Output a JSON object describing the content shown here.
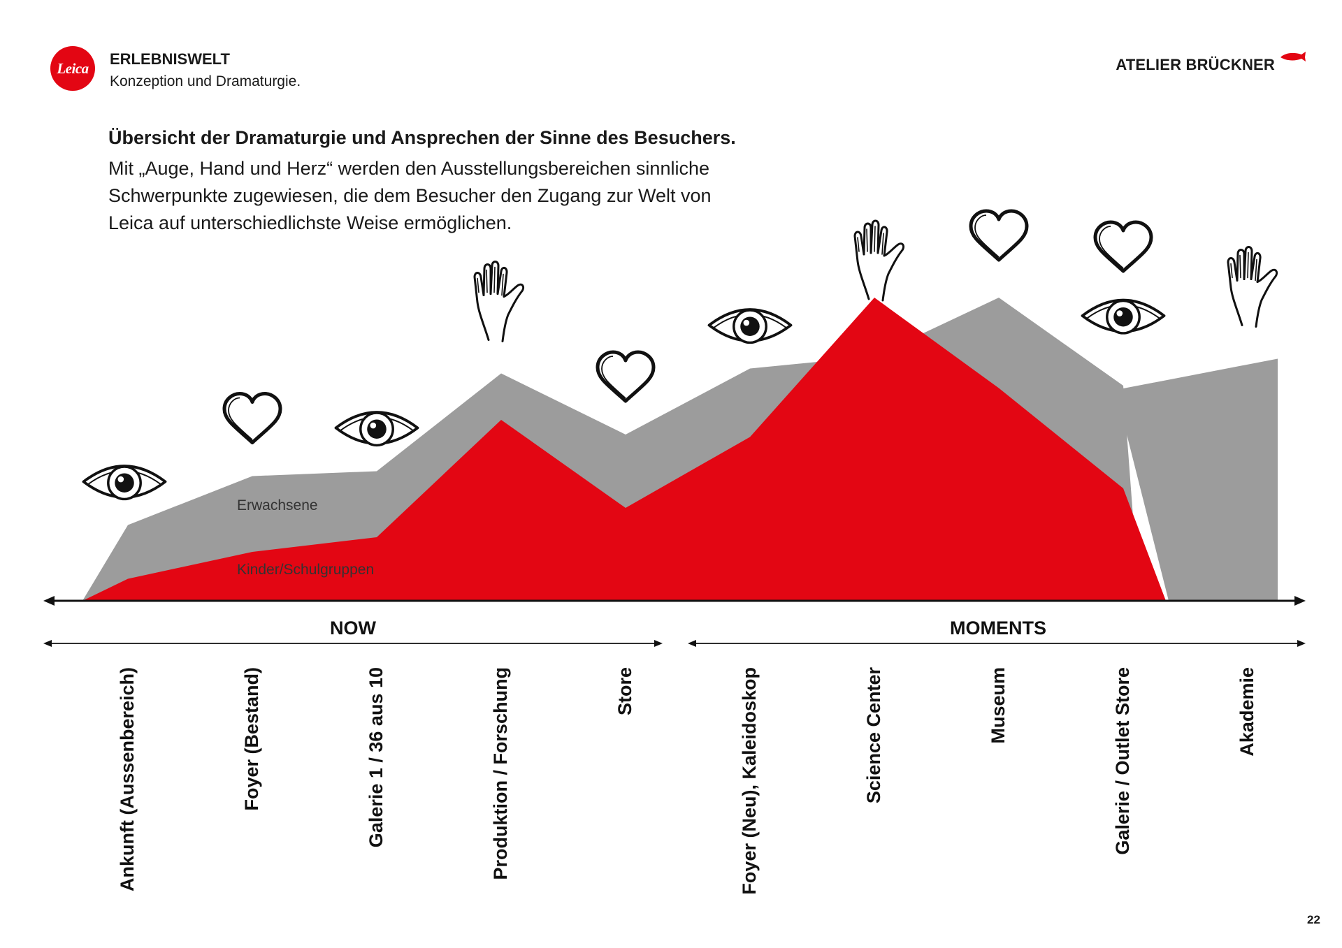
{
  "header": {
    "logo_text": "Leica",
    "title": "ERLEBNISWELT",
    "subtitle": "Konzeption und Dramaturgie.",
    "brand": "ATELIER BRÜCKNER"
  },
  "intro": {
    "title": "Übersicht der Dramaturgie und Ansprechen der Sinne des Besuchers.",
    "lines": [
      "Mit „Auge, Hand und Herz“ werden den Ausstellungsbereichen sinnliche",
      "Schwerpunkte zugewiesen, die dem Besucher den Zugang zur Welt von",
      "Leica auf unterschiedlichste Weise ermöglichen."
    ]
  },
  "chart_data": {
    "type": "area",
    "categories": [
      "Ankunft (Aussenbereich)",
      "Foyer (Bestand)",
      "Galerie 1 / 36 aus 10",
      "Produktion / Forschung",
      "Store",
      "Foyer (Neu), Kaleidoskop",
      "Science Center",
      "Museum",
      "Galerie / Outlet Store",
      "Akademie"
    ],
    "senses": [
      "eye",
      "heart",
      "eye",
      "hand",
      "heart",
      "eye",
      "hand",
      "heart",
      "heart+eye",
      "hand"
    ],
    "series": [
      {
        "name": "Erwachsene",
        "values": [
          0.31,
          0.51,
          0.53,
          0.93,
          0.68,
          0.95,
          1.0,
          1.24,
          0.88,
          0.99
        ]
      },
      {
        "name": "Kinder/Schulgruppen",
        "values": [
          0.09,
          0.2,
          0.26,
          0.74,
          0.38,
          0.67,
          1.24,
          0.87,
          0.46,
          0
        ]
      }
    ],
    "phases": [
      {
        "label": "NOW",
        "from": 0,
        "to": 4
      },
      {
        "label": "MOMENTS",
        "from": 5,
        "to": 9
      }
    ],
    "colors": {
      "adults": "#9c9c9c",
      "kids": "#e30613",
      "axis": "#111111"
    }
  },
  "page_number": "22"
}
